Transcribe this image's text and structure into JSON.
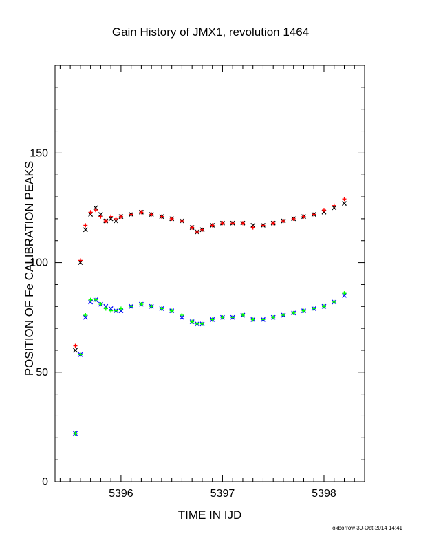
{
  "chart_data": {
    "type": "scatter",
    "title": "Gain History of JMX1, revolution 1464",
    "xlabel": "TIME IN IJD",
    "ylabel": "POSITION OF Fe CALIBRATION PEAKS",
    "xlim": [
      5395.35,
      5398.4
    ],
    "ylim": [
      0,
      190
    ],
    "x_ticks": [
      "5396",
      "5397",
      "5398"
    ],
    "y_ticks": [
      "0",
      "50",
      "100",
      "150"
    ],
    "grid": false,
    "legend": "none",
    "series": [
      {
        "color": "#000000",
        "marker": "x",
        "x": [
          5395.55,
          5395.6,
          5395.65,
          5395.7,
          5395.75,
          5395.8,
          5395.85,
          5395.9,
          5395.95,
          5396.0,
          5396.1,
          5396.2,
          5396.3,
          5396.4,
          5396.5,
          5396.6,
          5396.7,
          5396.75,
          5396.8,
          5396.9,
          5397.0,
          5397.1,
          5397.2,
          5397.3,
          5397.4,
          5397.5,
          5397.6,
          5397.7,
          5397.8,
          5397.9,
          5398.0,
          5398.1,
          5398.2
        ],
        "y": [
          60,
          100,
          115,
          122,
          125,
          122,
          119,
          120,
          119,
          121,
          122,
          123,
          122,
          121,
          120,
          119,
          116,
          114,
          115,
          117,
          118,
          118,
          118,
          117,
          117,
          118,
          119,
          120,
          121,
          122,
          123,
          125,
          127
        ]
      },
      {
        "color": "#ff0000",
        "marker": "+",
        "x": [
          5395.55,
          5395.6,
          5395.65,
          5395.7,
          5395.75,
          5395.8,
          5395.85,
          5395.9,
          5395.95,
          5396.0,
          5396.1,
          5396.2,
          5396.3,
          5396.4,
          5396.5,
          5396.6,
          5396.7,
          5396.75,
          5396.8,
          5396.9,
          5397.0,
          5397.1,
          5397.2,
          5397.3,
          5397.4,
          5397.5,
          5397.6,
          5397.7,
          5397.8,
          5397.9,
          5398.0,
          5398.1,
          5398.2
        ],
        "y": [
          62,
          101,
          117,
          123,
          124,
          121,
          119,
          121,
          120,
          121,
          122,
          123,
          122,
          121,
          120,
          119,
          116,
          114,
          115,
          117,
          118,
          118,
          118,
          116,
          117,
          118,
          119,
          120,
          121,
          122,
          124,
          126,
          129
        ]
      },
      {
        "color": "#0000ff",
        "marker": "x",
        "x": [
          5395.55,
          5395.6,
          5395.65,
          5395.7,
          5395.75,
          5395.8,
          5395.85,
          5395.9,
          5395.95,
          5396.0,
          5396.1,
          5396.2,
          5396.3,
          5396.4,
          5396.5,
          5396.6,
          5396.7,
          5396.75,
          5396.8,
          5396.9,
          5397.0,
          5397.1,
          5397.2,
          5397.3,
          5397.4,
          5397.5,
          5397.6,
          5397.7,
          5397.8,
          5397.9,
          5398.0,
          5398.1,
          5398.2
        ],
        "y": [
          22,
          58,
          75,
          82,
          83,
          81,
          80,
          79,
          78,
          78,
          80,
          81,
          80,
          79,
          78,
          75,
          73,
          72,
          72,
          74,
          75,
          75,
          76,
          74,
          74,
          75,
          76,
          77,
          78,
          79,
          80,
          82,
          85
        ]
      },
      {
        "color": "#00ff00",
        "marker": "+",
        "x": [
          5395.55,
          5395.6,
          5395.65,
          5395.7,
          5395.75,
          5395.8,
          5395.85,
          5395.9,
          5395.95,
          5396.0,
          5396.1,
          5396.2,
          5396.3,
          5396.4,
          5396.5,
          5396.6,
          5396.7,
          5396.75,
          5396.8,
          5396.9,
          5397.0,
          5397.1,
          5397.2,
          5397.3,
          5397.4,
          5397.5,
          5397.6,
          5397.7,
          5397.8,
          5397.9,
          5398.0,
          5398.1,
          5398.2
        ],
        "y": [
          22,
          58,
          76,
          83,
          83,
          81,
          79,
          78,
          78,
          79,
          80,
          81,
          80,
          79,
          78,
          76,
          73,
          72,
          72,
          74,
          75,
          75,
          76,
          74,
          74,
          75,
          76,
          77,
          78,
          79,
          80,
          82,
          86
        ]
      }
    ]
  },
  "footer": "oxborrow 30-Oct-2014 14:41"
}
